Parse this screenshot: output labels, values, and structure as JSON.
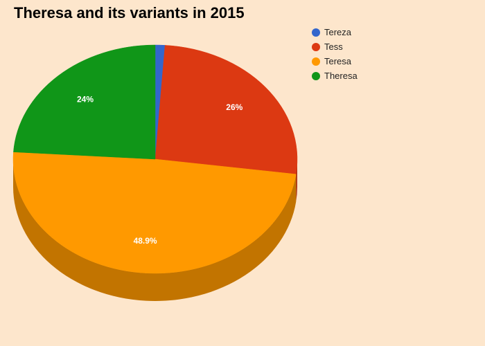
{
  "chart_data": {
    "type": "pie",
    "title": "Theresa and its variants in 2015",
    "legend_position": "top-right",
    "three_d": true,
    "slices": [
      {
        "name": "Tereza",
        "value": 1.1,
        "label": "",
        "color": "#3366cc",
        "side_color": "#27509f"
      },
      {
        "name": "Tess",
        "value": 26,
        "label": "26%",
        "color": "#dc3912",
        "side_color": "#a72b0e"
      },
      {
        "name": "Teresa",
        "value": 48.9,
        "label": "48.9%",
        "color": "#ff9900",
        "side_color": "#c27400"
      },
      {
        "name": "Theresa",
        "value": 24,
        "label": "24%",
        "color": "#109618",
        "side_color": "#0c7212"
      }
    ]
  }
}
